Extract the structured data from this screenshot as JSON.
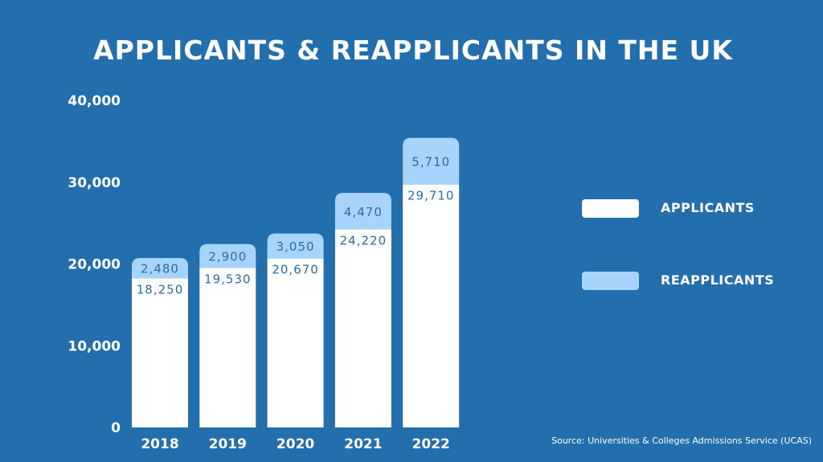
{
  "chart_data": {
    "type": "bar",
    "stacked": true,
    "title": "APPLICANTS & REAPPLICANTS IN THE UK",
    "categories": [
      "2018",
      "2019",
      "2020",
      "2021",
      "2022"
    ],
    "series": [
      {
        "name": "APPLICANTS",
        "values": [
          18250,
          19530,
          20670,
          24220,
          29710
        ],
        "labels": [
          "18,250",
          "19,530",
          "20,670",
          "24,220",
          "29,710"
        ],
        "color": "#ffffff"
      },
      {
        "name": "REAPPLICANTS",
        "values": [
          2480,
          2900,
          3050,
          4470,
          5710
        ],
        "labels": [
          "2,480",
          "2,900",
          "3,050",
          "4,470",
          "5,710"
        ],
        "color": "#a6d4fb"
      }
    ],
    "ylim": [
      0,
      40000
    ],
    "yticks": [
      0,
      10000,
      20000,
      30000,
      40000
    ],
    "ytick_labels": [
      "0",
      "10,000",
      "20,000",
      "30,000",
      "40,000"
    ],
    "xlabel": "",
    "ylabel": "",
    "grid": false,
    "legend": "right",
    "source": "Source: Universities & Colleges Admissions Service (UCAS)"
  },
  "colors": {
    "background": "#236fae",
    "label_text": "#2a6ca8"
  }
}
